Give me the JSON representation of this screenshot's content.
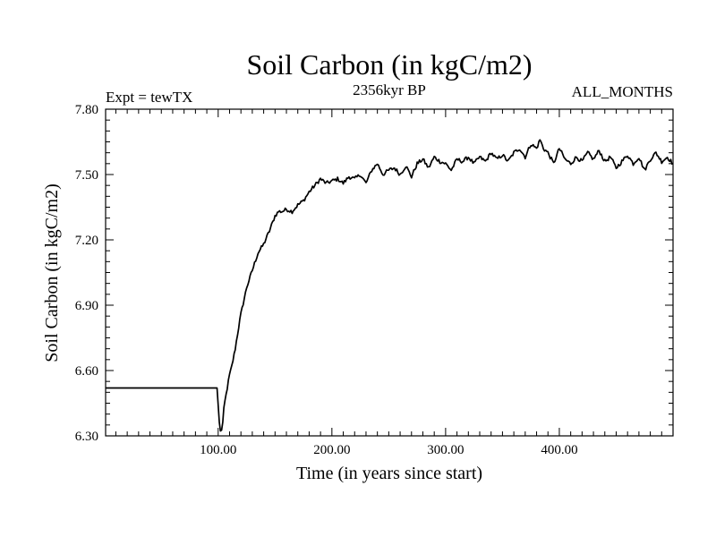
{
  "chart_data": {
    "type": "line",
    "title": "Soil Carbon (in kgC/m2)",
    "subtitle_left": "Expt = tewTX",
    "subtitle_center": "2356kyr BP",
    "subtitle_right": "ALL_MONTHS",
    "xlabel": "Time (in years since start)",
    "ylabel": "Soil Carbon (in kgC/m2)",
    "xlim": [
      1,
      500
    ],
    "ylim": [
      6.3,
      7.8
    ],
    "x_ticks": [
      {
        "value": 100,
        "label": "100.00"
      },
      {
        "value": 200,
        "label": "200.00"
      },
      {
        "value": 300,
        "label": "300.00"
      },
      {
        "value": 400,
        "label": "400.00"
      }
    ],
    "y_ticks": [
      {
        "value": 6.3,
        "label": "6.30"
      },
      {
        "value": 6.6,
        "label": "6.60"
      },
      {
        "value": 6.9,
        "label": "6.90"
      },
      {
        "value": 7.2,
        "label": "7.20"
      },
      {
        "value": 7.5,
        "label": "7.50"
      },
      {
        "value": 7.8,
        "label": "7.80"
      }
    ],
    "grid": false,
    "series": [
      {
        "x": [
          1,
          50,
          99,
          100,
          101,
          102,
          103,
          104,
          105,
          106,
          108,
          110,
          112,
          115,
          118,
          120,
          125,
          130,
          135,
          140,
          145,
          150,
          153,
          156,
          160,
          165,
          170,
          175,
          180,
          185,
          190,
          195,
          200,
          205,
          210,
          215,
          220,
          225,
          230,
          235,
          240,
          245,
          250,
          255,
          260,
          265,
          270,
          275,
          280,
          285,
          290,
          295,
          300,
          305,
          310,
          315,
          320,
          325,
          330,
          335,
          340,
          345,
          350,
          355,
          360,
          365,
          370,
          375,
          380,
          383,
          386,
          390,
          395,
          400,
          405,
          410,
          415,
          420,
          425,
          430,
          435,
          440,
          445,
          450,
          455,
          460,
          465,
          470,
          475,
          480,
          485,
          490,
          495,
          500
        ],
        "y": [
          6.52,
          6.52,
          6.52,
          6.44,
          6.36,
          6.32,
          6.33,
          6.36,
          6.42,
          6.46,
          6.52,
          6.58,
          6.62,
          6.7,
          6.8,
          6.86,
          6.98,
          7.06,
          7.14,
          7.18,
          7.24,
          7.31,
          7.33,
          7.33,
          7.34,
          7.33,
          7.36,
          7.38,
          7.42,
          7.45,
          7.48,
          7.46,
          7.47,
          7.48,
          7.46,
          7.49,
          7.48,
          7.5,
          7.46,
          7.52,
          7.55,
          7.5,
          7.52,
          7.53,
          7.5,
          7.54,
          7.49,
          7.55,
          7.57,
          7.53,
          7.58,
          7.56,
          7.55,
          7.52,
          7.57,
          7.56,
          7.58,
          7.55,
          7.58,
          7.56,
          7.6,
          7.57,
          7.59,
          7.56,
          7.6,
          7.62,
          7.58,
          7.64,
          7.62,
          7.66,
          7.62,
          7.6,
          7.55,
          7.62,
          7.57,
          7.55,
          7.58,
          7.56,
          7.6,
          7.57,
          7.61,
          7.56,
          7.58,
          7.53,
          7.56,
          7.59,
          7.55,
          7.58,
          7.52,
          7.57,
          7.6,
          7.56,
          7.58,
          7.55
        ]
      }
    ]
  }
}
